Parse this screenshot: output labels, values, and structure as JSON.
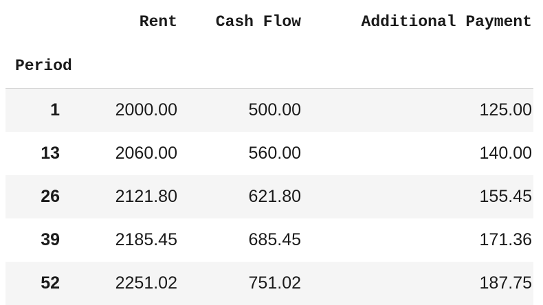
{
  "table": {
    "columns": [
      "Rent",
      "Cash Flow",
      "Additional Payment"
    ],
    "index_name": "Period",
    "rows": [
      {
        "period": "1",
        "rent": "2000.00",
        "cash_flow": "500.00",
        "additional_payment": "125.00"
      },
      {
        "period": "13",
        "rent": "2060.00",
        "cash_flow": "560.00",
        "additional_payment": "140.00"
      },
      {
        "period": "26",
        "rent": "2121.80",
        "cash_flow": "621.80",
        "additional_payment": "155.45"
      },
      {
        "period": "39",
        "rent": "2185.45",
        "cash_flow": "685.45",
        "additional_payment": "171.36"
      },
      {
        "period": "52",
        "rent": "2251.02",
        "cash_flow": "751.02",
        "additional_payment": "187.75"
      }
    ]
  }
}
